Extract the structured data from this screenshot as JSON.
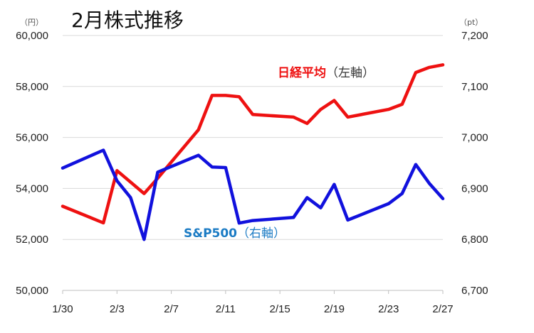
{
  "chart_data": {
    "type": "line",
    "title": "2月株式推移",
    "left_unit": "（円）",
    "right_unit": "（pt）",
    "left_ylim": [
      50000,
      60000
    ],
    "right_ylim": [
      6700,
      7200
    ],
    "left_ticks": [
      "50,000",
      "52,000",
      "54,000",
      "56,000",
      "58,000",
      "60,000"
    ],
    "right_ticks": [
      "6,700",
      "6,800",
      "6,900",
      "7,000",
      "7,100",
      "7,200"
    ],
    "x_ticks": [
      "1/30",
      "2/3",
      "2/7",
      "2/11",
      "2/15",
      "2/19",
      "2/23",
      "2/27"
    ],
    "grid": true,
    "series": [
      {
        "name": "日経平均",
        "name_suffix": "（左軸）",
        "axis": "left",
        "color": "#ee1111",
        "points": [
          [
            "1/30",
            53300
          ],
          [
            "2/2",
            52650
          ],
          [
            "2/3",
            54700
          ],
          [
            "2/5",
            53800
          ],
          [
            "2/6",
            54400
          ],
          [
            "2/9",
            56300
          ],
          [
            "2/10",
            57650
          ],
          [
            "2/11",
            57650
          ],
          [
            "2/12",
            57600
          ],
          [
            "2/13",
            56900
          ],
          [
            "2/16",
            56800
          ],
          [
            "2/17",
            56550
          ],
          [
            "2/18",
            57100
          ],
          [
            "2/19",
            57450
          ],
          [
            "2/20",
            56800
          ],
          [
            "2/23",
            57100
          ],
          [
            "2/24",
            57300
          ],
          [
            "2/25",
            58550
          ],
          [
            "2/26",
            58750
          ],
          [
            "2/27",
            58850
          ]
        ]
      },
      {
        "name": "S&P500",
        "name_suffix": "（右軸）",
        "axis": "right",
        "color": "#1111dd",
        "points": [
          [
            "1/30",
            6940
          ],
          [
            "2/2",
            6975
          ],
          [
            "2/3",
            6915
          ],
          [
            "2/4",
            6882
          ],
          [
            "2/5",
            6800
          ],
          [
            "2/6",
            6932
          ],
          [
            "2/9",
            6965
          ],
          [
            "2/10",
            6942
          ],
          [
            "2/11",
            6941
          ],
          [
            "2/12",
            6832
          ],
          [
            "2/13",
            6837
          ],
          [
            "2/16",
            6843
          ],
          [
            "2/17",
            6882
          ],
          [
            "2/18",
            6862
          ],
          [
            "2/19",
            6908
          ],
          [
            "2/20",
            6838
          ],
          [
            "2/23",
            6870
          ],
          [
            "2/24",
            6890
          ],
          [
            "2/25",
            6947
          ],
          [
            "2/26",
            6910
          ],
          [
            "2/27",
            6880
          ]
        ]
      }
    ]
  }
}
